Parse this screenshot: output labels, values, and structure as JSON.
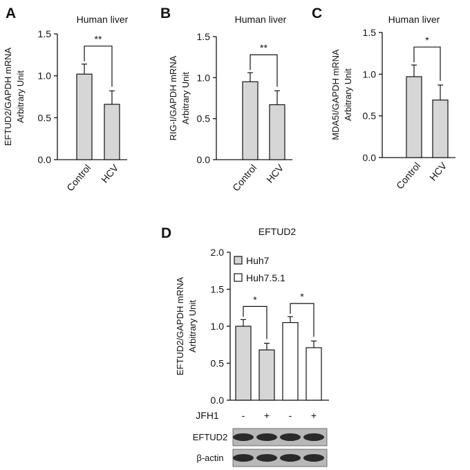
{
  "colors": {
    "bar_gray": "#d6d6d6",
    "bar_white": "#ffffff",
    "axis": "#111111",
    "blot_bg": "#b8b8b8",
    "band": "#2a2a2a"
  },
  "chart_data": [
    {
      "type": "bar",
      "panel": "A",
      "title": "Human liver",
      "ylabel_lines": [
        "EFTUD2/GAPDH mRNA",
        "Arbitrary Unit"
      ],
      "categories": [
        "Control",
        "HCV"
      ],
      "values": [
        1.02,
        0.66
      ],
      "errors": [
        0.12,
        0.16
      ],
      "ylim": [
        0,
        1.5
      ],
      "yticks": [
        "0.0",
        "0.5",
        "1.0",
        "1.5"
      ],
      "significance": "**",
      "grid": false
    },
    {
      "type": "bar",
      "panel": "B",
      "title": "Human liver",
      "ylabel_lines": [
        "RIG-I/GAPDH mRNA",
        "Arbitrary Unit"
      ],
      "categories": [
        "Control",
        "HCV"
      ],
      "values": [
        0.95,
        0.67
      ],
      "errors": [
        0.11,
        0.17
      ],
      "ylim": [
        0,
        1.5
      ],
      "yticks": [
        "0.0",
        "0.5",
        "1.0",
        "1.5"
      ],
      "significance": "**",
      "grid": false
    },
    {
      "type": "bar",
      "panel": "C",
      "title": "Human liver",
      "ylabel_lines": [
        "MDA5I/GAPDH mRNA",
        "Arbitrary Unit"
      ],
      "categories": [
        "Control",
        "HCV"
      ],
      "values": [
        0.97,
        0.69
      ],
      "errors": [
        0.14,
        0.18
      ],
      "ylim": [
        0,
        1.5
      ],
      "yticks": [
        "0.0",
        "0.5",
        "1.0",
        "1.5"
      ],
      "significance": "*",
      "grid": false
    },
    {
      "type": "bar",
      "panel": "D",
      "title": "EFTUD2",
      "ylabel_lines": [
        "EFTUD2/GAPDH mRNA",
        "Arbitrary Unit"
      ],
      "ylim": [
        0,
        2.0
      ],
      "yticks": [
        "0.0",
        "0.5",
        "1.0",
        "1.5",
        "2.0"
      ],
      "legend_position": "top-left",
      "series": [
        {
          "name": "Huh7",
          "color": "#d6d6d6",
          "values": [
            1.0,
            0.68
          ],
          "errors": [
            0.09,
            0.09
          ]
        },
        {
          "name": "Huh7.5.1",
          "color": "#ffffff",
          "values": [
            1.05,
            0.71
          ],
          "errors": [
            0.08,
            0.09
          ]
        }
      ],
      "significance": [
        "*",
        "*"
      ],
      "grid": false,
      "treatment": {
        "label": "JFH1",
        "values": [
          "-",
          "+",
          "-",
          "+"
        ]
      }
    }
  ],
  "blots": [
    {
      "label": "EFTUD2",
      "bands": 4
    },
    {
      "label": "β-actin",
      "bands": 4
    }
  ]
}
